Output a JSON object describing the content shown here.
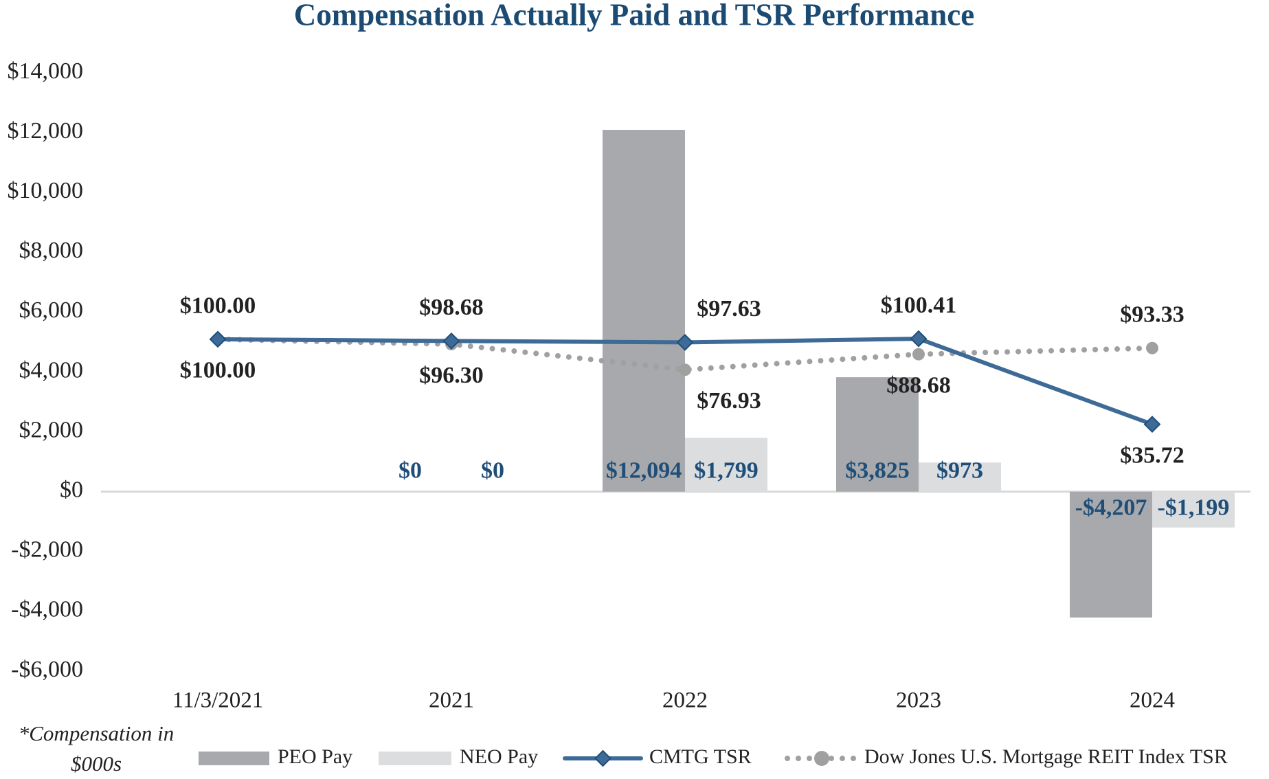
{
  "chart_data": {
    "type": "bar-line",
    "title": "Compensation Actually Paid and TSR Performance",
    "note": "*Compensation in $000s",
    "categories": [
      "11/3/2021",
      "2021",
      "2022",
      "2023",
      "2024"
    ],
    "ylim": [
      -6000,
      14000
    ],
    "yticks": [
      {
        "value": -6000,
        "label": "-$6,000"
      },
      {
        "value": -4000,
        "label": "-$4,000"
      },
      {
        "value": -2000,
        "label": "-$2,000"
      },
      {
        "value": 0,
        "label": "$0"
      },
      {
        "value": 2000,
        "label": "$2,000"
      },
      {
        "value": 4000,
        "label": "$4,000"
      },
      {
        "value": 6000,
        "label": "$6,000"
      },
      {
        "value": 8000,
        "label": "$8,000"
      },
      {
        "value": 10000,
        "label": "$10,000"
      },
      {
        "value": 12000,
        "label": "$12,000"
      },
      {
        "value": 14000,
        "label": "$14,000"
      }
    ],
    "y2lim": [
      -151,
      301.5
    ],
    "series": [
      {
        "name": "PEO Pay",
        "type": "bar",
        "color": "#a7a9ac",
        "values": [
          null,
          0,
          12094,
          3825,
          -4207
        ],
        "value_labels": [
          null,
          "$0",
          "$12,094",
          "$3,825",
          "-$4,207"
        ]
      },
      {
        "name": "NEO Pay",
        "type": "bar",
        "color": "#dcdddf",
        "values": [
          null,
          0,
          1799,
          973,
          -1199
        ],
        "value_labels": [
          null,
          "$0",
          "$1,799",
          "$973",
          "-$1,199"
        ]
      },
      {
        "name": "CMTG TSR",
        "type": "line",
        "axis": "y2",
        "color": "#3d6a96",
        "marker": "diamond",
        "values": [
          100.0,
          98.68,
          97.63,
          100.41,
          35.72
        ],
        "value_labels": [
          "$100.00",
          "$98.68",
          "$97.63",
          "$100.41",
          "$35.72"
        ]
      },
      {
        "name": "Dow Jones U.S. Mortgage REIT Index TSR",
        "type": "line",
        "axis": "y2",
        "color": "#a0a0a0",
        "dashed": true,
        "marker": "circle",
        "values": [
          100.0,
          96.3,
          76.93,
          88.68,
          93.33
        ],
        "value_labels": [
          "$100.00",
          "$96.30",
          "$76.93",
          "$88.68",
          "$93.33"
        ]
      }
    ]
  }
}
